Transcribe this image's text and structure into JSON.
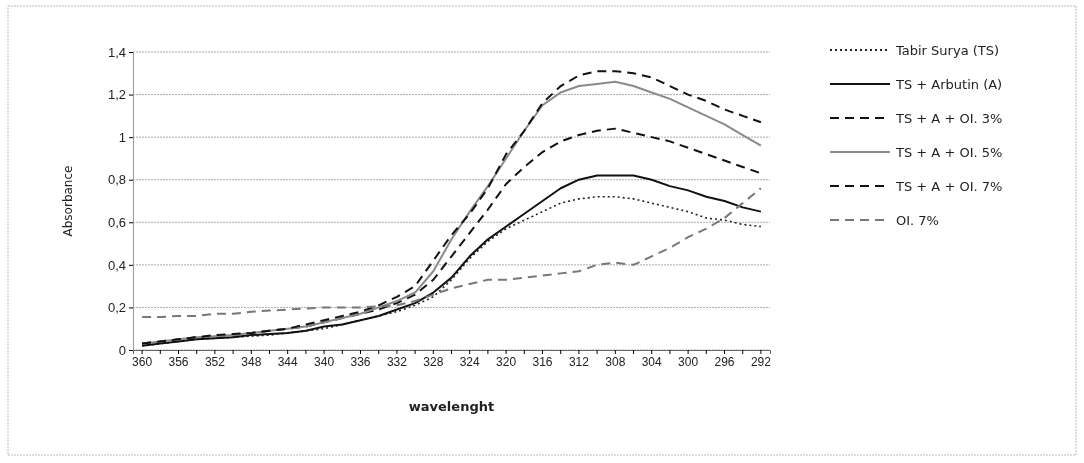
{
  "chart_data": {
    "type": "line",
    "xlabel": "wavelenght",
    "ylabel": "Absorbance",
    "categories": [
      "360",
      null,
      "356",
      null,
      "352",
      null,
      "348",
      null,
      "344",
      null,
      "340",
      null,
      "336",
      null,
      "332",
      null,
      "328",
      null,
      "324",
      null,
      "320",
      null,
      "316",
      null,
      "312",
      null,
      "308",
      null,
      "304",
      null,
      "300",
      null,
      "296",
      null,
      "292"
    ],
    "ylim": [
      0,
      1.4
    ],
    "yticks": [
      0,
      {
        "value": 0.2,
        "label": "0,2"
      },
      {
        "value": 0.4,
        "label": "0,4"
      },
      {
        "value": 0.6,
        "label": "0,6"
      },
      {
        "value": 0.8,
        "label": "0,8"
      },
      1,
      {
        "value": 1.2,
        "label": "1,2"
      },
      {
        "value": 1.4,
        "label": "1,4"
      }
    ],
    "grid": "y",
    "legend": "right",
    "marker": "none",
    "series": [
      {
        "name": "Tabir Surya (TS)",
        "color": "#222222",
        "line_style": "dotted",
        "values": [
          0.02,
          0.03,
          0.04,
          0.05,
          0.055,
          0.06,
          0.065,
          0.07,
          0.08,
          0.09,
          0.1,
          0.12,
          0.14,
          0.16,
          0.18,
          0.21,
          0.25,
          0.33,
          0.43,
          0.51,
          0.57,
          0.61,
          0.65,
          0.69,
          0.71,
          0.72,
          0.72,
          0.71,
          0.69,
          0.67,
          0.65,
          0.62,
          0.61,
          0.59,
          0.58
        ]
      },
      {
        "name": "TS + Arbutin (A)",
        "color": "#111111",
        "line_style": "solid",
        "values": [
          0.02,
          0.03,
          0.04,
          0.05,
          0.055,
          0.06,
          0.07,
          0.075,
          0.08,
          0.09,
          0.11,
          0.12,
          0.14,
          0.16,
          0.19,
          0.22,
          0.27,
          0.34,
          0.44,
          0.52,
          0.58,
          0.64,
          0.7,
          0.76,
          0.8,
          0.82,
          0.82,
          0.82,
          0.8,
          0.77,
          0.75,
          0.72,
          0.7,
          0.67,
          0.65
        ]
      },
      {
        "name": "TS + A + OI. 3%",
        "color": "#111111",
        "line_style": "dashed",
        "values": [
          0.03,
          0.04,
          0.05,
          0.06,
          0.065,
          0.07,
          0.08,
          0.09,
          0.1,
          0.11,
          0.13,
          0.15,
          0.17,
          0.19,
          0.22,
          0.26,
          0.33,
          0.44,
          0.55,
          0.66,
          0.78,
          0.86,
          0.93,
          0.98,
          1.01,
          1.03,
          1.04,
          1.02,
          1.0,
          0.98,
          0.95,
          0.92,
          0.89,
          0.86,
          0.83
        ]
      },
      {
        "name": "TS + A + OI. 5%",
        "color": "#8a8a8a",
        "line_style": "solid",
        "values": [
          0.03,
          0.04,
          0.05,
          0.06,
          0.065,
          0.07,
          0.08,
          0.09,
          0.1,
          0.11,
          0.13,
          0.15,
          0.17,
          0.2,
          0.23,
          0.27,
          0.37,
          0.52,
          0.65,
          0.77,
          0.9,
          1.03,
          1.15,
          1.21,
          1.24,
          1.25,
          1.26,
          1.24,
          1.21,
          1.18,
          1.14,
          1.1,
          1.06,
          1.01,
          0.96
        ]
      },
      {
        "name": "TS + A + OI. 7%",
        "color": "#111111",
        "line_style": "dashed",
        "values": [
          0.03,
          0.04,
          0.05,
          0.06,
          0.07,
          0.075,
          0.08,
          0.09,
          0.1,
          0.12,
          0.14,
          0.16,
          0.18,
          0.21,
          0.25,
          0.3,
          0.42,
          0.54,
          0.64,
          0.76,
          0.92,
          1.03,
          1.16,
          1.24,
          1.29,
          1.31,
          1.31,
          1.3,
          1.28,
          1.24,
          1.2,
          1.17,
          1.13,
          1.1,
          1.07
        ]
      },
      {
        "name": "OI. 7%",
        "color": "#777777",
        "line_style": "dashed",
        "values": [
          0.155,
          0.155,
          0.16,
          0.16,
          0.17,
          0.17,
          0.18,
          0.185,
          0.19,
          0.195,
          0.2,
          0.2,
          0.2,
          0.205,
          0.21,
          0.23,
          0.26,
          0.29,
          0.31,
          0.33,
          0.33,
          0.34,
          0.35,
          0.36,
          0.37,
          0.4,
          0.41,
          0.4,
          0.44,
          0.48,
          0.53,
          0.57,
          0.62,
          0.69,
          0.76
        ]
      }
    ]
  }
}
